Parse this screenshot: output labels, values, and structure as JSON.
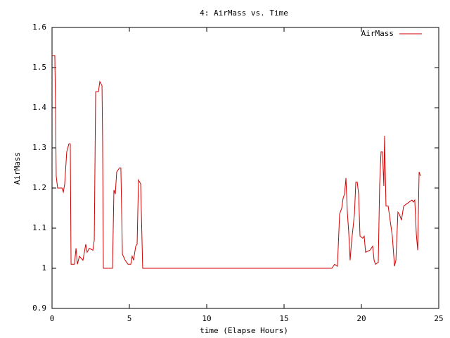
{
  "chart_data": {
    "type": "line",
    "title": "4: AirMass vs. Time",
    "xlabel": "time (Elapse Hours)",
    "ylabel": "AirMass",
    "x": [
      0,
      0.18,
      0.23,
      0.27,
      0.36,
      0.55,
      0.64,
      0.73,
      0.82,
      0.95,
      1.09,
      1.18,
      1.23,
      1.45,
      1.55,
      1.64,
      1.77,
      2.0,
      2.18,
      2.27,
      2.41,
      2.64,
      2.73,
      2.82,
      3.0,
      3.09,
      3.23,
      3.27,
      3.32,
      3.91,
      4.0,
      4.09,
      4.18,
      4.36,
      4.45,
      4.55,
      4.73,
      4.91,
      5.09,
      5.18,
      5.27,
      5.41,
      5.5,
      5.59,
      5.73,
      5.86,
      18.09,
      18.27,
      18.45,
      18.59,
      18.73,
      18.82,
      18.91,
      19.0,
      19.09,
      19.18,
      19.27,
      19.36,
      19.55,
      19.64,
      19.73,
      19.82,
      19.91,
      20.09,
      20.18,
      20.27,
      20.55,
      20.73,
      20.82,
      20.91,
      21.09,
      21.18,
      21.27,
      21.36,
      21.45,
      21.5,
      21.59,
      21.73,
      21.91,
      22.0,
      22.14,
      22.23,
      22.36,
      22.45,
      22.59,
      22.73,
      22.91,
      23.09,
      23.27,
      23.36,
      23.45,
      23.55,
      23.64,
      23.73,
      23.82
    ],
    "series": [
      {
        "name": "AirMass",
        "color": "#d00000",
        "values": [
          1.53,
          1.53,
          1.39,
          1.23,
          1.2,
          1.2,
          1.2,
          1.19,
          1.21,
          1.29,
          1.31,
          1.31,
          1.01,
          1.01,
          1.05,
          1.01,
          1.03,
          1.02,
          1.06,
          1.04,
          1.05,
          1.045,
          1.07,
          1.44,
          1.44,
          1.465,
          1.455,
          1.32,
          1.0,
          1.0,
          1.195,
          1.185,
          1.24,
          1.25,
          1.25,
          1.035,
          1.02,
          1.01,
          1.01,
          1.03,
          1.02,
          1.055,
          1.06,
          1.22,
          1.21,
          1.0,
          1.0,
          1.01,
          1.005,
          1.135,
          1.15,
          1.175,
          1.185,
          1.225,
          1.14,
          1.09,
          1.02,
          1.065,
          1.135,
          1.215,
          1.215,
          1.185,
          1.08,
          1.075,
          1.08,
          1.04,
          1.045,
          1.055,
          1.02,
          1.01,
          1.015,
          1.21,
          1.29,
          1.29,
          1.205,
          1.33,
          1.155,
          1.155,
          1.105,
          1.08,
          1.005,
          1.02,
          1.14,
          1.135,
          1.12,
          1.155,
          1.16,
          1.165,
          1.17,
          1.165,
          1.17,
          1.085,
          1.045,
          1.24,
          1.23
        ]
      }
    ],
    "xlim": [
      0,
      25
    ],
    "xticks": [
      0,
      5,
      10,
      15,
      20,
      25
    ],
    "ylim": [
      0.9,
      1.6
    ],
    "yticks": [
      0.9,
      1,
      1.1,
      1.2,
      1.3,
      1.4,
      1.5,
      1.6
    ],
    "legend": "upper right"
  }
}
